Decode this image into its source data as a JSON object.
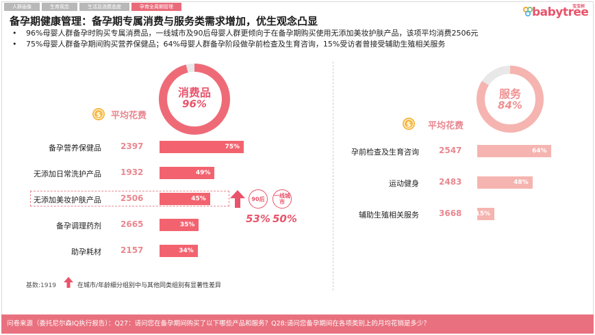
{
  "tabs": [
    {
      "label": "人群画像",
      "active": false
    },
    {
      "label": "生育观念",
      "active": false
    },
    {
      "label": "生活及消费态度",
      "active": false
    },
    {
      "label": "孕育全周期管理",
      "active": true
    }
  ],
  "logo": {
    "brand": "babytree",
    "small": "宝宝树"
  },
  "title": "备孕期健康管理：备孕期专属消费与服务类需求增加，优生观念凸显",
  "bullets": [
    "96%母婴人群备孕时购买专属消费品，一线城市及90后母婴人群更倾向于在备孕期购买使用无添加美妆护肤产品，该项平均消费2506元",
    "75%母婴人群备孕期间购买营养保健品；64%母婴人群备孕阶段做孕前检查及生育咨询，15%受访者曾接受辅助生殖相关服务"
  ],
  "colors": {
    "accent": "#e8546b",
    "bar_left": "#f2636f",
    "bar_right": "#f5b4b0",
    "ring_track": "#e8e8e8",
    "footer": "#e9707e"
  },
  "chart_data": [
    {
      "type": "bar",
      "orientation": "horizontal",
      "ring": {
        "label": "消费品",
        "value": 96,
        "display": "96%"
      },
      "spend_label": "平均花费",
      "categories": [
        "备孕营养保健品",
        "无添加日常洗护产品",
        "无添加美妆护肤产品",
        "备孕调理药剂",
        "助孕耗材"
      ],
      "avg_spend": [
        2397,
        1932,
        2506,
        2665,
        2157
      ],
      "values": [
        75,
        49,
        45,
        35,
        34
      ],
      "value_labels": [
        "75%",
        "49%",
        "45%",
        "35%",
        "34%"
      ],
      "highlight_index": 2,
      "annotation": {
        "badges": [
          "90后",
          "一线城市"
        ],
        "values": [
          "53%",
          "50%"
        ]
      },
      "xlim": [
        0,
        100
      ]
    },
    {
      "type": "bar",
      "orientation": "horizontal",
      "ring": {
        "label": "服务",
        "value": 84,
        "display": "84%"
      },
      "spend_label": "平均花费",
      "categories": [
        "孕前检查及生育咨询",
        "运动健身",
        "辅助生殖相关服务"
      ],
      "avg_spend": [
        2547,
        2483,
        3668
      ],
      "values": [
        64,
        48,
        15
      ],
      "value_labels": [
        "64%",
        "48%",
        "15%"
      ],
      "xlim": [
        0,
        100
      ]
    }
  ],
  "base_note": "基数:1919",
  "legend_note": "在城市/年龄细分组别中与其他同类组别有显著性差异",
  "footer": "问卷来源（委托尼尔森IQ执行报告）：Q27：请问您在备孕期间购买了以下哪些产品和服务？Q28:请问您备孕期间在各项类别上的月均花销是多少？",
  "icons": {
    "coin": "coin-icon",
    "arrow": "up-arrow-icon"
  }
}
